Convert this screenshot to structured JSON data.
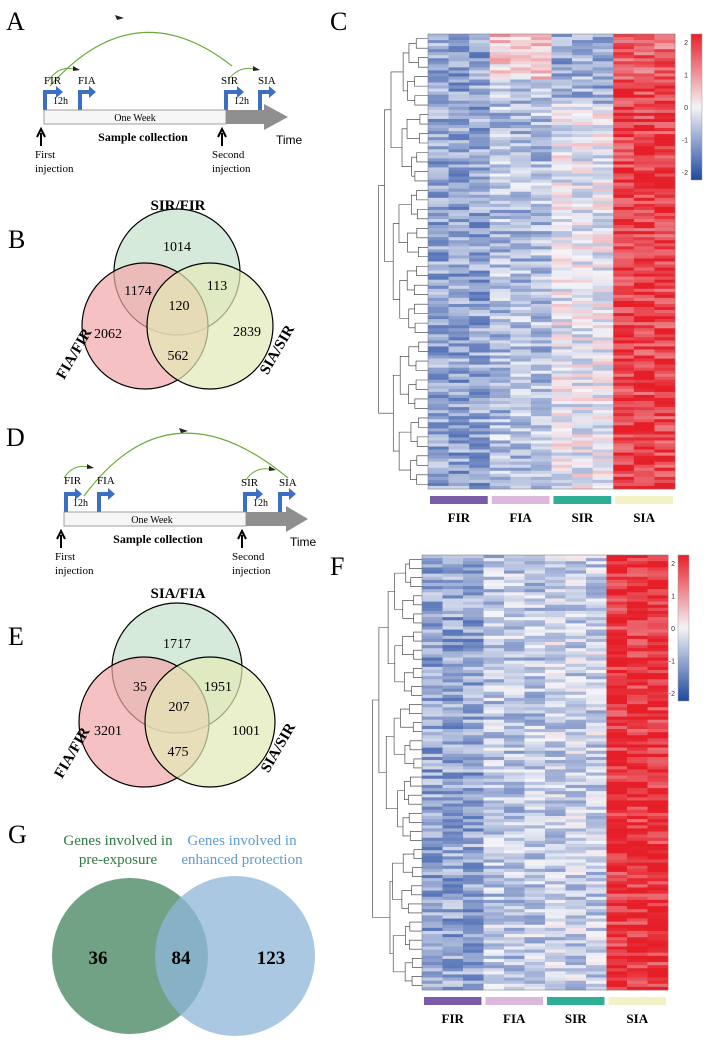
{
  "panels": {
    "a": "A",
    "b": "B",
    "c": "C",
    "d": "D",
    "e": "E",
    "f": "F",
    "g": "G"
  },
  "timeline_a": {
    "fir": "FIR",
    "fia": "FIA",
    "sir": "SIR",
    "sia": "SIA",
    "interval1": "12h",
    "interval2": "12h",
    "week": "One Week",
    "sample": "Sample collection",
    "time": "Time",
    "first1": "First",
    "first2": "injection",
    "second1": "Second",
    "second2": "injection"
  },
  "timeline_d": {
    "fir": "FIR",
    "fia": "FIA",
    "sir": "SIR",
    "sia": "SIA",
    "interval1": "12h",
    "interval2": "12h",
    "week": "One Week",
    "sample": "Sample collection",
    "time": "Time",
    "first1": "First",
    "first2": "injection",
    "second1": "Second",
    "second2": "injection"
  },
  "venn_b": {
    "top_label": "SIR/FIR",
    "left_label": "FIA/FIR",
    "right_label": "SIA/SIR",
    "colors": {
      "top": "#cfe6d6",
      "left": "#f2a7a8",
      "right": "#e3eab6"
    },
    "counts": {
      "top_only": "1014",
      "left_only": "2062",
      "right_only": "2839",
      "top_left": "1174",
      "top_right": "113",
      "left_right": "562",
      "center": "120"
    }
  },
  "venn_e": {
    "top_label": "SIA/FIA",
    "left_label": "FIA/FIR",
    "right_label": "SIA/SIR",
    "colors": {
      "top": "#cfe6d6",
      "left": "#f2a7a8",
      "right": "#e3eab6"
    },
    "counts": {
      "top_only": "1717",
      "left_only": "3201",
      "right_only": "1001",
      "top_left": "35",
      "top_right": "1951",
      "left_right": "475",
      "center": "207"
    }
  },
  "venn_g": {
    "left_label1": "Genes involved in",
    "left_label2": "pre-exposure",
    "right_label1": "Genes involved in",
    "right_label2": "enhanced protection",
    "left_color": "#4f8b66",
    "right_color": "#8fb6da",
    "left_only": "36",
    "overlap": "84",
    "right_only": "123"
  },
  "heatmap_c": {
    "groups": [
      "FIR",
      "FIA",
      "SIR",
      "SIA"
    ],
    "group_colors": [
      "#7a5ca8",
      "#dcb8dc",
      "#2eae94",
      "#f3f2c6"
    ],
    "scale_ticks": [
      "2",
      "1",
      "0",
      "-1",
      "-2"
    ]
  },
  "heatmap_f": {
    "groups": [
      "FIR",
      "FIA",
      "SIR",
      "SIA"
    ],
    "group_colors": [
      "#7a5ca8",
      "#dcb8dc",
      "#2eae94",
      "#f3f2c6"
    ],
    "scale_ticks": [
      "2",
      "1",
      "0",
      "-1",
      "-2"
    ]
  }
}
